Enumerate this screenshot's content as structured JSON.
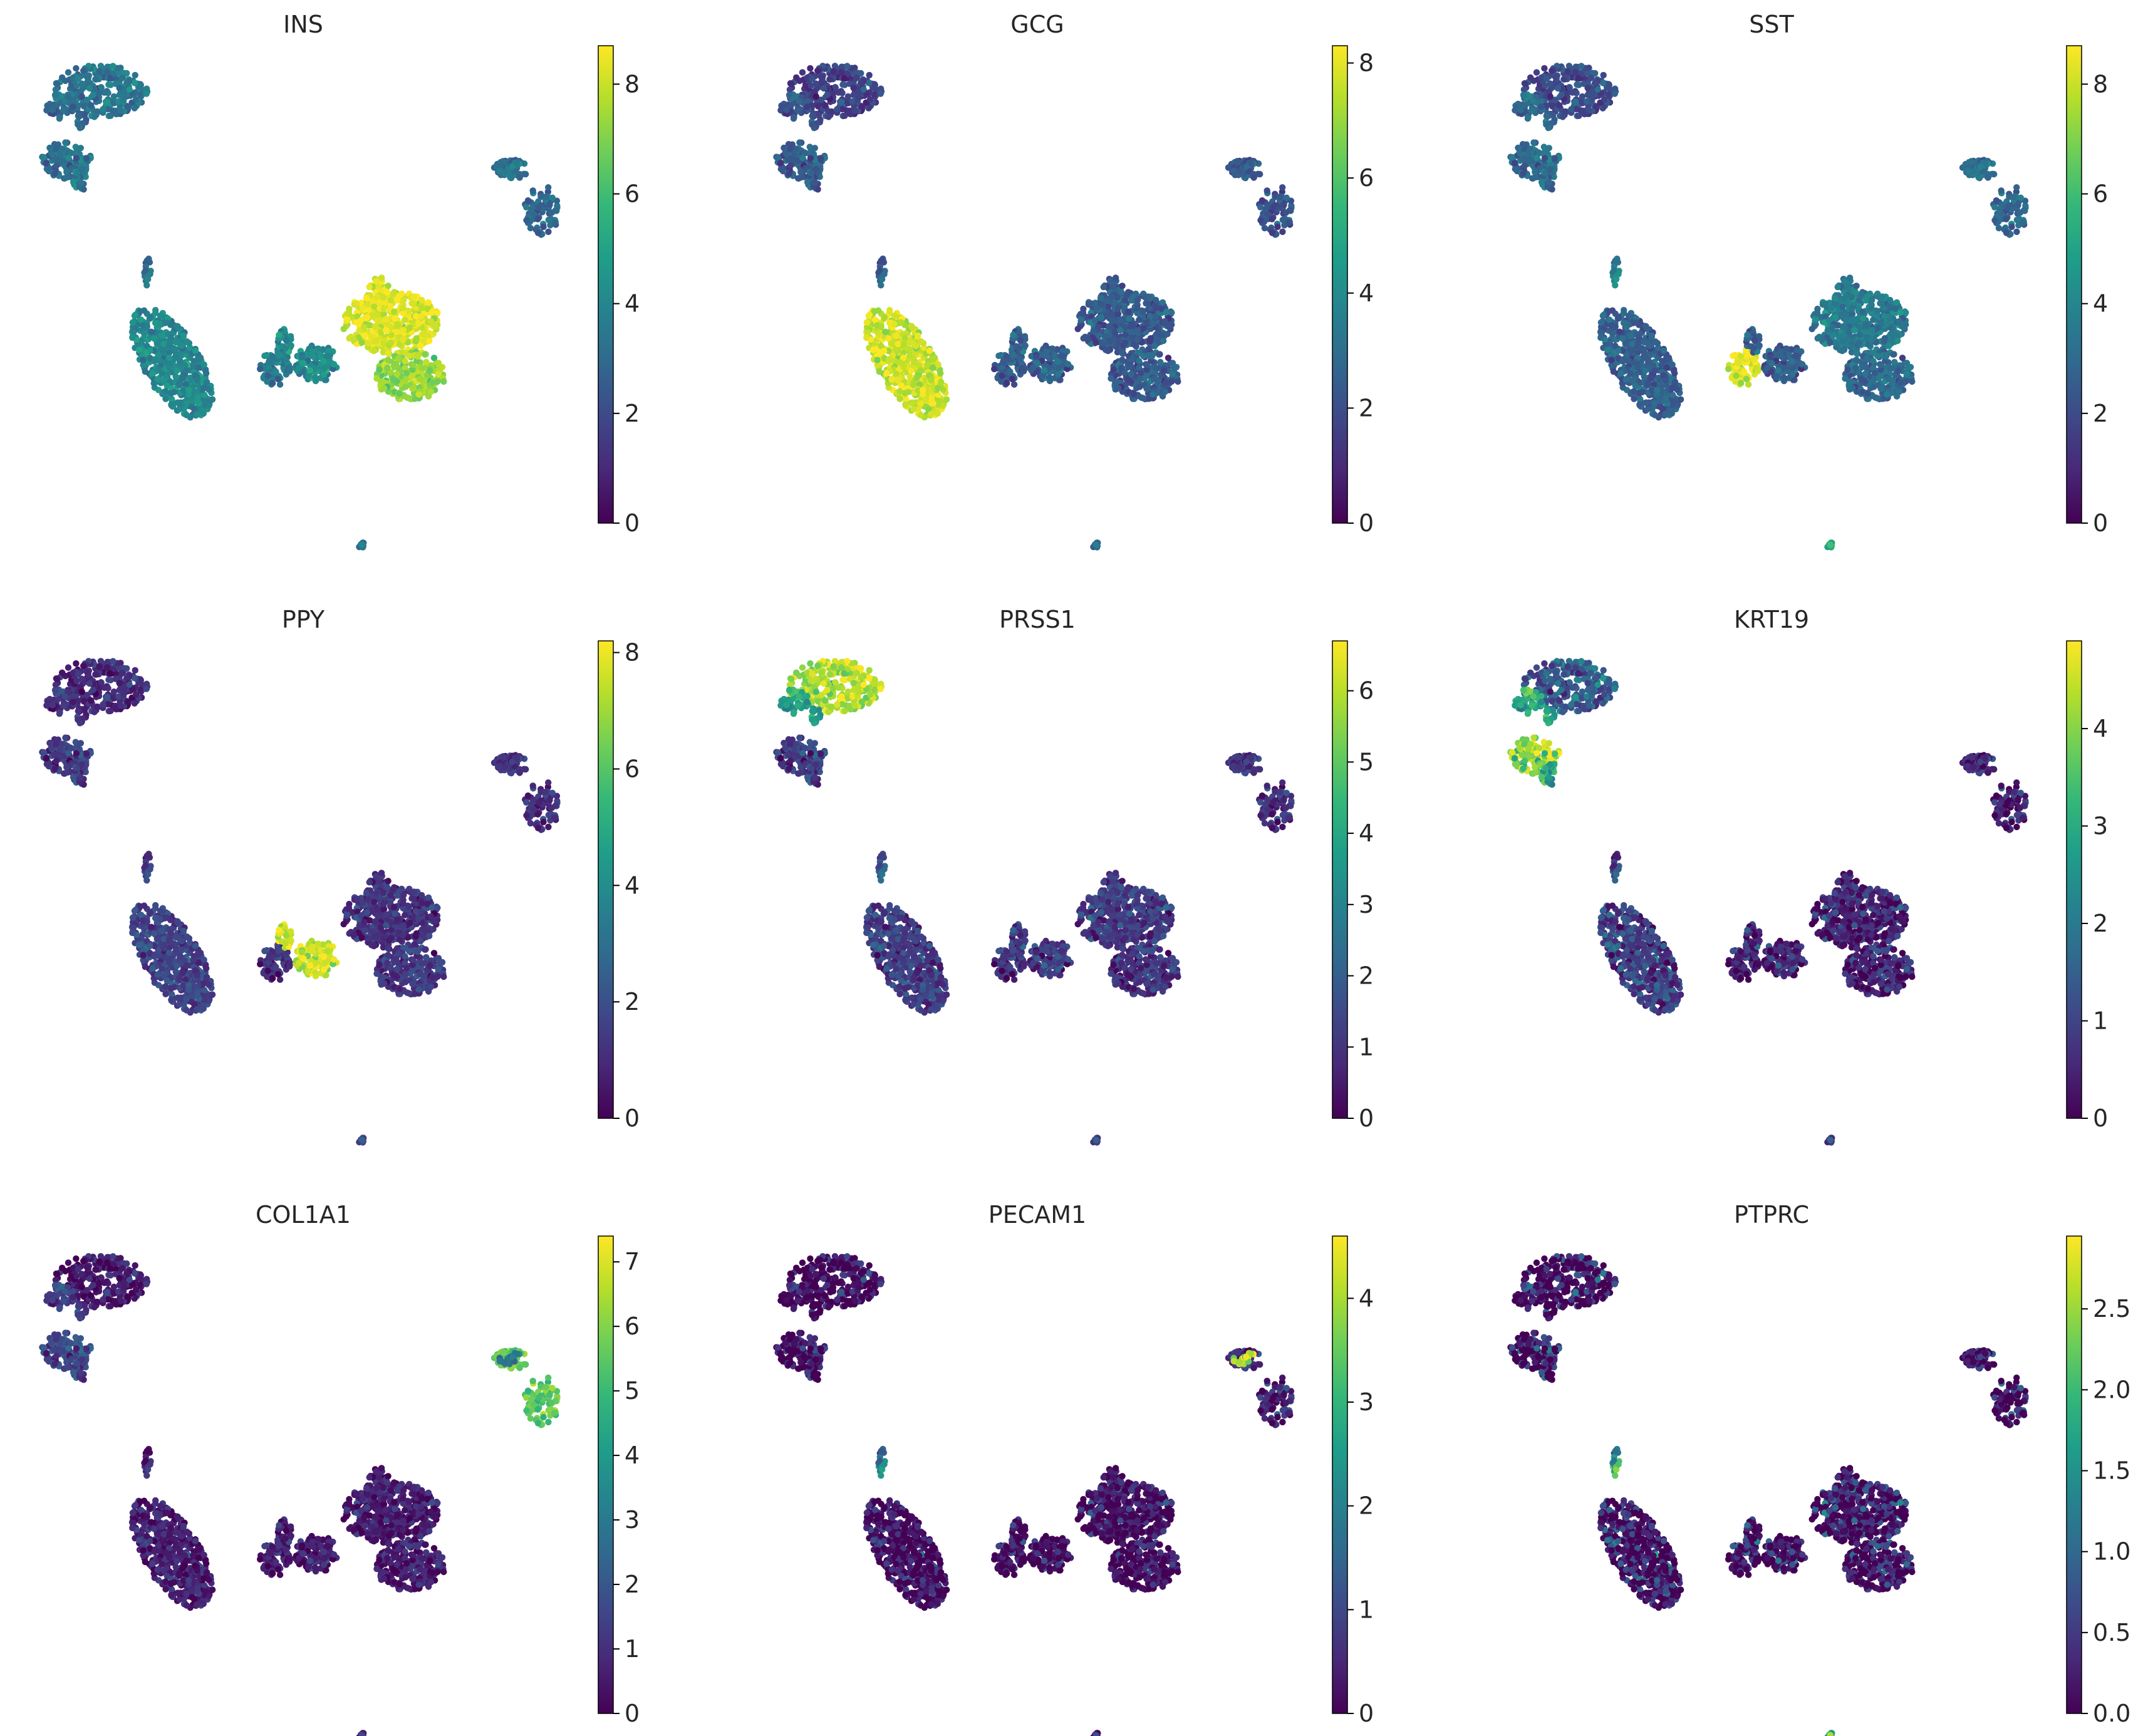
{
  "colormap": "viridis",
  "viridis_stops": [
    "#440154",
    "#482878",
    "#3e4989",
    "#31688e",
    "#26828e",
    "#1f9e89",
    "#35b779",
    "#6ece58",
    "#b5de2b",
    "#fde725"
  ],
  "chart_data": [
    {
      "type": "scatter",
      "title": "INS",
      "vmax": 8.7,
      "cbar_ticks": [
        "0",
        "2",
        "4",
        "6",
        "8"
      ],
      "cbar_tick_values": [
        0,
        2,
        4,
        6,
        8
      ],
      "cluster_levels": {
        "acinar": 3.4,
        "acinar_small": 3.0,
        "ductal": 3.2,
        "ductal_small": 3.5,
        "stellate": 3.0,
        "endothelial": 3.6,
        "alpha": 4.0,
        "tail": 3.2,
        "delta": 3.6,
        "gamma": 4.2,
        "beta_top": 8.3,
        "beta_bottom": 7.3,
        "immune": 3.5
      }
    },
    {
      "type": "scatter",
      "title": "GCG",
      "vmax": 8.3,
      "cbar_ticks": [
        "0",
        "2",
        "4",
        "6",
        "8"
      ],
      "cbar_tick_values": [
        0,
        2,
        4,
        6,
        8
      ],
      "cluster_levels": {
        "acinar": 1.6,
        "acinar_small": 2.2,
        "ductal": 2.4,
        "ductal_small": 2.4,
        "stellate": 2.2,
        "endothelial": 2.4,
        "alpha": 7.6,
        "tail": 2.4,
        "delta": 2.4,
        "gamma": 2.6,
        "beta_top": 2.4,
        "beta_bottom": 2.4,
        "immune": 3.0
      }
    },
    {
      "type": "scatter",
      "title": "SST",
      "vmax": 8.7,
      "cbar_ticks": [
        "0",
        "2",
        "4",
        "6",
        "8"
      ],
      "cbar_tick_values": [
        0,
        2,
        4,
        6,
        8
      ],
      "cluster_levels": {
        "acinar": 2.0,
        "acinar_small": 3.0,
        "ductal": 3.0,
        "ductal_small": 3.0,
        "stellate": 3.0,
        "endothelial": 3.4,
        "alpha": 2.6,
        "tail": 3.8,
        "delta": 8.3,
        "gamma": 2.6,
        "beta_top": 3.6,
        "beta_bottom": 3.0,
        "immune": 5.5
      }
    },
    {
      "type": "scatter",
      "title": "PPY",
      "vmax": 8.2,
      "cbar_ticks": [
        "0",
        "2",
        "4",
        "6",
        "8"
      ],
      "cbar_tick_values": [
        0,
        2,
        4,
        6,
        8
      ],
      "cluster_levels": {
        "acinar": 1.0,
        "acinar_small": 1.2,
        "ductal": 1.4,
        "ductal_small": 1.4,
        "stellate": 1.2,
        "endothelial": 1.2,
        "alpha": 1.6,
        "tail": 1.4,
        "delta": 1.2,
        "gamma": 7.6,
        "beta_top": 1.2,
        "beta_bottom": 1.4,
        "immune": 2.0
      }
    },
    {
      "type": "scatter",
      "title": "PRSS1",
      "vmax": 6.7,
      "cbar_ticks": [
        "0",
        "1",
        "2",
        "3",
        "4",
        "5",
        "6"
      ],
      "cbar_tick_values": [
        0,
        1,
        2,
        3,
        4,
        5,
        6
      ],
      "cluster_levels": {
        "acinar": 5.9,
        "acinar_small": 3.8,
        "ductal": 1.2,
        "ductal_small": 1.2,
        "stellate": 1.0,
        "endothelial": 1.0,
        "alpha": 1.2,
        "tail": 1.8,
        "delta": 1.0,
        "gamma": 1.2,
        "beta_top": 1.2,
        "beta_bottom": 1.0,
        "immune": 1.5
      }
    },
    {
      "type": "scatter",
      "title": "KRT19",
      "vmax": 4.9,
      "cbar_ticks": [
        "0",
        "1",
        "2",
        "3",
        "4"
      ],
      "cbar_tick_values": [
        0,
        1,
        2,
        3,
        4
      ],
      "cluster_levels": {
        "acinar": 1.4,
        "acinar_small": 3.0,
        "ductal": 4.1,
        "ductal_small": 2.8,
        "stellate": 0.5,
        "endothelial": 0.5,
        "alpha": 0.9,
        "tail": 0.9,
        "delta": 0.4,
        "gamma": 0.5,
        "beta_top": 0.5,
        "beta_bottom": 0.5,
        "immune": 1.0
      }
    },
    {
      "type": "scatter",
      "title": "COL1A1",
      "vmax": 7.4,
      "cbar_ticks": [
        "0",
        "1",
        "2",
        "3",
        "4",
        "5",
        "6",
        "7"
      ],
      "cbar_tick_values": [
        0,
        1,
        2,
        3,
        4,
        5,
        6,
        7
      ],
      "cluster_levels": {
        "acinar": 0.5,
        "acinar_small": 1.4,
        "ductal": 1.6,
        "ductal_small": 1.4,
        "stellate": 5.6,
        "endothelial": 2.8,
        "alpha": 0.6,
        "tail": 0.6,
        "delta": 0.6,
        "gamma": 0.6,
        "beta_top": 0.6,
        "beta_bottom": 0.6,
        "immune": 1.0
      }
    },
    {
      "type": "scatter",
      "title": "PECAM1",
      "vmax": 4.6,
      "cbar_ticks": [
        "0",
        "1",
        "2",
        "3",
        "4"
      ],
      "cbar_tick_values": [
        0,
        1,
        2,
        3,
        4
      ],
      "cluster_levels": {
        "acinar": 0.1,
        "acinar_small": 0.1,
        "ductal": 0.1,
        "ductal_small": 0.1,
        "stellate": 0.5,
        "endothelial": 4.0,
        "alpha": 0.1,
        "tail": 1.8,
        "delta": 0.1,
        "gamma": 0.1,
        "beta_top": 0.2,
        "beta_bottom": 0.1,
        "immune": 0.5
      }
    },
    {
      "type": "scatter",
      "title": "PTPRC",
      "vmax": 2.95,
      "cbar_ticks": [
        "0.0",
        "0.5",
        "1.0",
        "1.5",
        "2.0",
        "2.5"
      ],
      "cbar_tick_values": [
        0,
        0.5,
        1.0,
        1.5,
        2.0,
        2.5
      ],
      "cluster_levels": {
        "acinar": 0.05,
        "acinar_small": 0.1,
        "ductal": 0.1,
        "ductal_small": 0.1,
        "stellate": 0.1,
        "endothelial": 0.1,
        "alpha": 0.1,
        "tail": 1.6,
        "delta": 0.1,
        "gamma": 0.1,
        "beta_top": 0.2,
        "beta_bottom": 0.1,
        "immune": 2.0
      }
    }
  ]
}
